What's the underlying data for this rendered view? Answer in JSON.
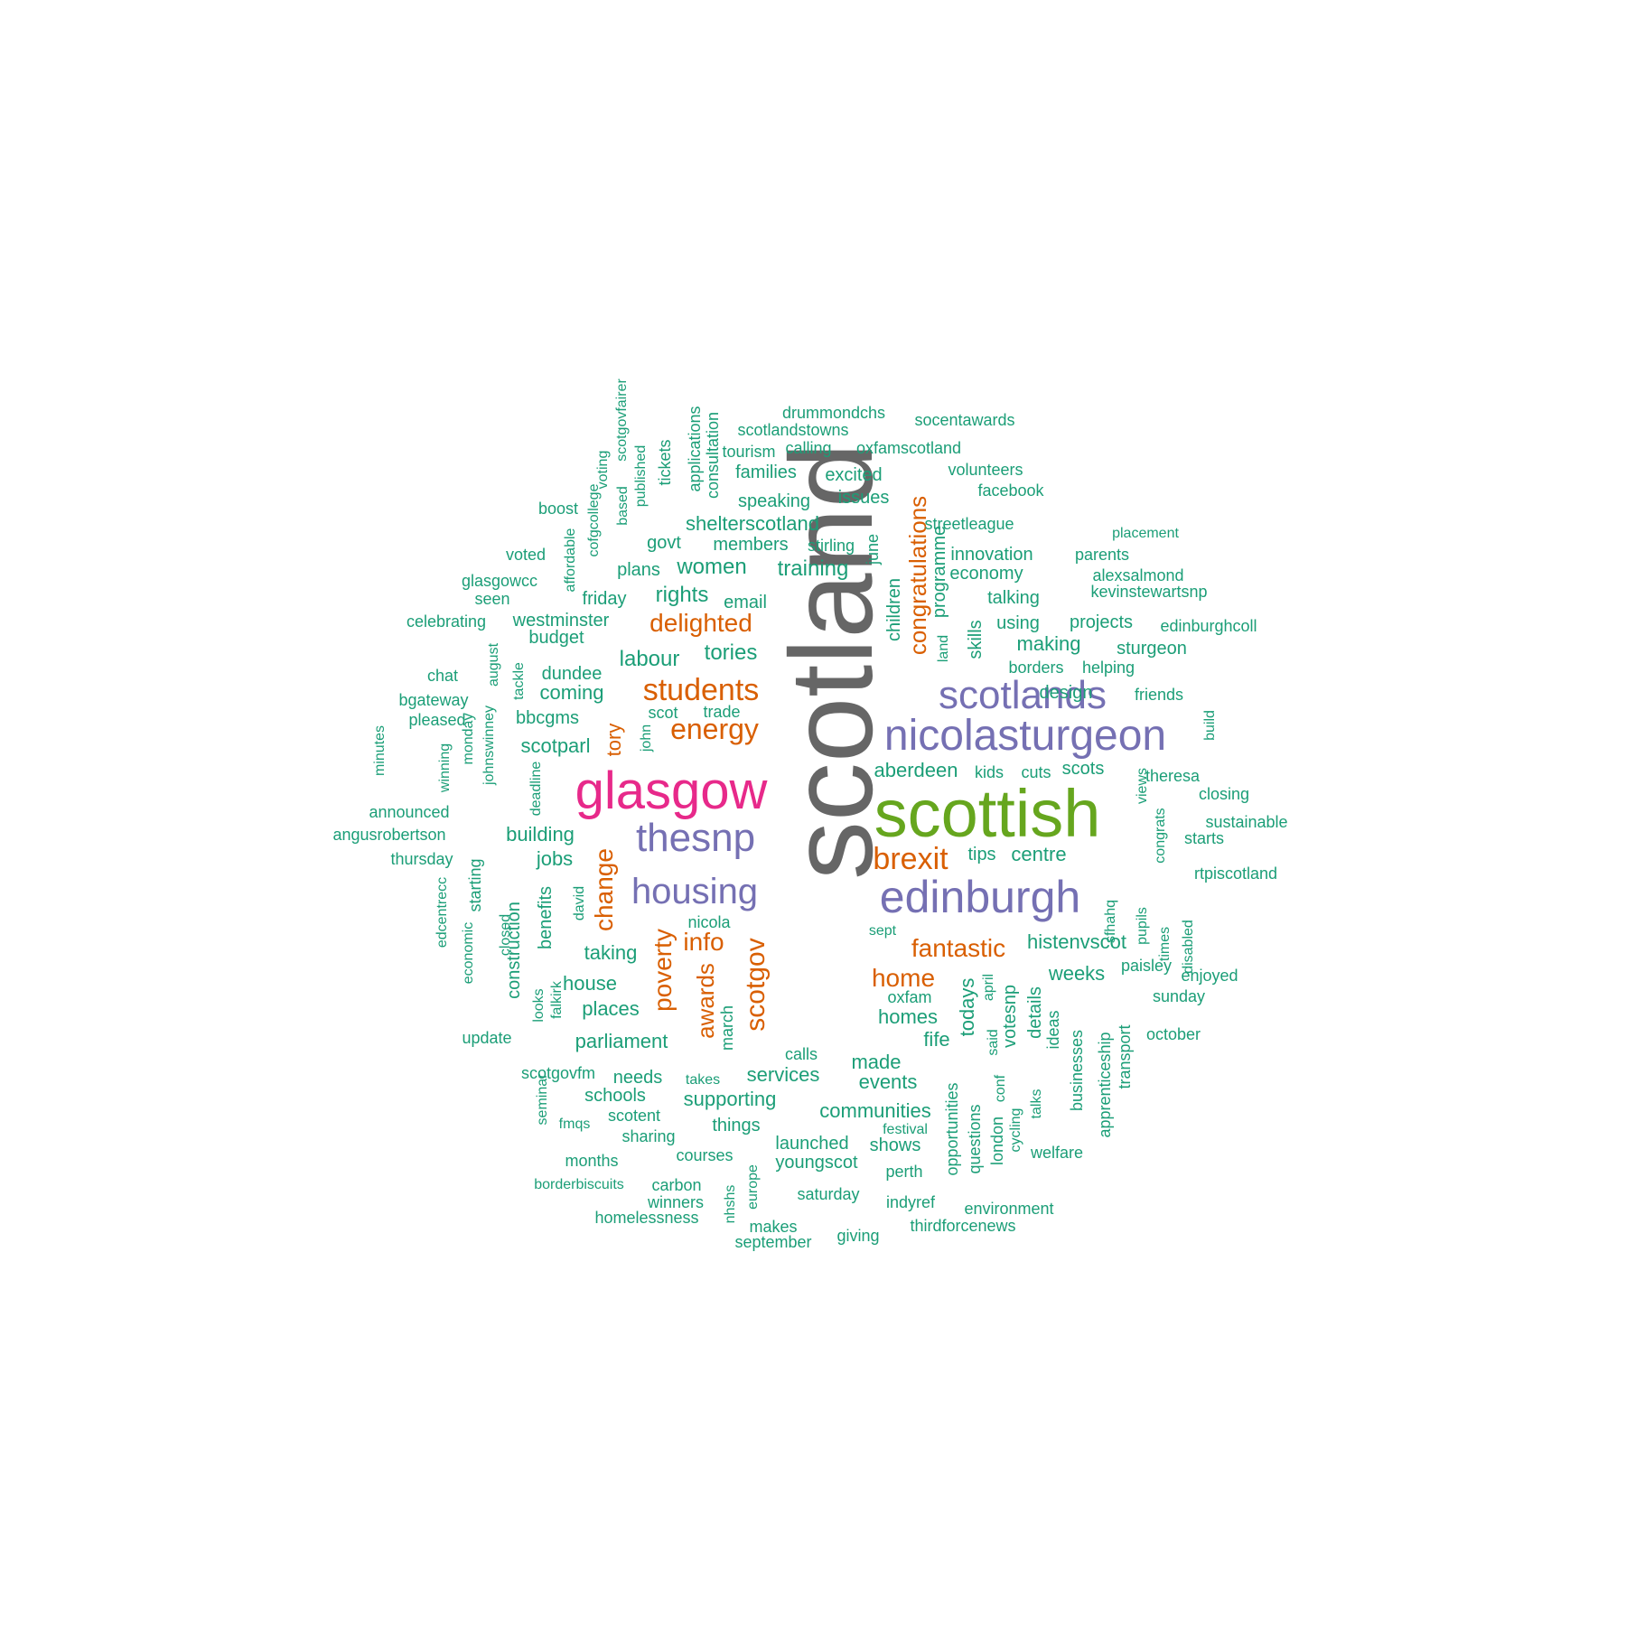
{
  "title": "word cloud",
  "palette": [
    "#1b9e77",
    "#d95f02",
    "#7570b3",
    "#e7298a",
    "#66a61e",
    "#666666"
  ],
  "words": [
    {
      "text": "scotland",
      "color": 5
    },
    {
      "text": "scottish",
      "color": 4
    },
    {
      "text": "glasgow",
      "color": 3
    },
    {
      "text": "nicolasturgeon",
      "color": 2
    },
    {
      "text": "edinburgh",
      "color": 2
    },
    {
      "text": "scotlands",
      "color": 2
    },
    {
      "text": "thesnp",
      "color": 2
    },
    {
      "text": "housing",
      "color": 2
    },
    {
      "text": "students",
      "color": 1
    },
    {
      "text": "energy",
      "color": 1
    },
    {
      "text": "brexit",
      "color": 1
    },
    {
      "text": "delighted",
      "color": 1
    },
    {
      "text": "congratulations",
      "color": 1
    },
    {
      "text": "fantastic",
      "color": 1
    },
    {
      "text": "home",
      "color": 1
    },
    {
      "text": "info",
      "color": 1
    },
    {
      "text": "poverty",
      "color": 1
    },
    {
      "text": "change",
      "color": 1
    },
    {
      "text": "awards",
      "color": 1
    },
    {
      "text": "scotgov",
      "color": 1
    },
    {
      "text": "tory",
      "color": 1
    },
    {
      "text": "drummondchs",
      "color": 0
    },
    {
      "text": "socentawards",
      "color": 0
    },
    {
      "text": "scotlandstowns",
      "color": 0
    },
    {
      "text": "tourism",
      "color": 0
    },
    {
      "text": "calling",
      "color": 0
    },
    {
      "text": "oxfamscotland",
      "color": 0
    },
    {
      "text": "families",
      "color": 0
    },
    {
      "text": "excited",
      "color": 0
    },
    {
      "text": "volunteers",
      "color": 0
    },
    {
      "text": "facebook",
      "color": 0
    },
    {
      "text": "speaking",
      "color": 0
    },
    {
      "text": "issues",
      "color": 0
    },
    {
      "text": "boost",
      "color": 0
    },
    {
      "text": "shelterscotland",
      "color": 0
    },
    {
      "text": "streetleague",
      "color": 0
    },
    {
      "text": "placement",
      "color": 0
    },
    {
      "text": "voted",
      "color": 0
    },
    {
      "text": "govt",
      "color": 0
    },
    {
      "text": "members",
      "color": 0
    },
    {
      "text": "stirling",
      "color": 0
    },
    {
      "text": "innovation",
      "color": 0
    },
    {
      "text": "parents",
      "color": 0
    },
    {
      "text": "glasgowcc",
      "color": 0
    },
    {
      "text": "plans",
      "color": 0
    },
    {
      "text": "women",
      "color": 0
    },
    {
      "text": "training",
      "color": 0
    },
    {
      "text": "economy",
      "color": 0
    },
    {
      "text": "alexsalmond",
      "color": 0
    },
    {
      "text": "seen",
      "color": 0
    },
    {
      "text": "friday",
      "color": 0
    },
    {
      "text": "rights",
      "color": 0
    },
    {
      "text": "email",
      "color": 0
    },
    {
      "text": "talking",
      "color": 0
    },
    {
      "text": "kevinstewartsnp",
      "color": 0
    },
    {
      "text": "celebrating",
      "color": 0
    },
    {
      "text": "westminster",
      "color": 0
    },
    {
      "text": "using",
      "color": 0
    },
    {
      "text": "projects",
      "color": 0
    },
    {
      "text": "edinburghcoll",
      "color": 0
    },
    {
      "text": "budget",
      "color": 0
    },
    {
      "text": "making",
      "color": 0
    },
    {
      "text": "sturgeon",
      "color": 0
    },
    {
      "text": "labour",
      "color": 0
    },
    {
      "text": "tories",
      "color": 0
    },
    {
      "text": "chat",
      "color": 0
    },
    {
      "text": "dundee",
      "color": 0
    },
    {
      "text": "borders",
      "color": 0
    },
    {
      "text": "helping",
      "color": 0
    },
    {
      "text": "bgateway",
      "color": 0
    },
    {
      "text": "coming",
      "color": 0
    },
    {
      "text": "design",
      "color": 0
    },
    {
      "text": "friends",
      "color": 0
    },
    {
      "text": "pleased",
      "color": 0
    },
    {
      "text": "bbcgms",
      "color": 0
    },
    {
      "text": "scot",
      "color": 0
    },
    {
      "text": "trade",
      "color": 0
    },
    {
      "text": "scotparl",
      "color": 0
    },
    {
      "text": "aberdeen",
      "color": 0
    },
    {
      "text": "kids",
      "color": 0
    },
    {
      "text": "cuts",
      "color": 0
    },
    {
      "text": "scots",
      "color": 0
    },
    {
      "text": "theresa",
      "color": 0
    },
    {
      "text": "closing",
      "color": 0
    },
    {
      "text": "announced",
      "color": 0
    },
    {
      "text": "sustainable",
      "color": 0
    },
    {
      "text": "angusrobertson",
      "color": 0
    },
    {
      "text": "building",
      "color": 0
    },
    {
      "text": "starts",
      "color": 0
    },
    {
      "text": "thursday",
      "color": 0
    },
    {
      "text": "jobs",
      "color": 0
    },
    {
      "text": "tips",
      "color": 0
    },
    {
      "text": "centre",
      "color": 0
    },
    {
      "text": "rtpiscotland",
      "color": 0
    },
    {
      "text": "nicola",
      "color": 0
    },
    {
      "text": "sept",
      "color": 0
    },
    {
      "text": "taking",
      "color": 0
    },
    {
      "text": "histenvscot",
      "color": 0
    },
    {
      "text": "paisley",
      "color": 0
    },
    {
      "text": "weeks",
      "color": 0
    },
    {
      "text": "enjoyed",
      "color": 0
    },
    {
      "text": "house",
      "color": 0
    },
    {
      "text": "homes",
      "color": 0
    },
    {
      "text": "oxfam",
      "color": 0
    },
    {
      "text": "sunday",
      "color": 0
    },
    {
      "text": "places",
      "color": 0
    },
    {
      "text": "fife",
      "color": 0
    },
    {
      "text": "update",
      "color": 0
    },
    {
      "text": "parliament",
      "color": 0
    },
    {
      "text": "october",
      "color": 0
    },
    {
      "text": "calls",
      "color": 0
    },
    {
      "text": "made",
      "color": 0
    },
    {
      "text": "scotgovfm",
      "color": 0
    },
    {
      "text": "needs",
      "color": 0
    },
    {
      "text": "takes",
      "color": 0
    },
    {
      "text": "services",
      "color": 0
    },
    {
      "text": "events",
      "color": 0
    },
    {
      "text": "schools",
      "color": 0
    },
    {
      "text": "supporting",
      "color": 0
    },
    {
      "text": "communities",
      "color": 0
    },
    {
      "text": "scotent",
      "color": 0
    },
    {
      "text": "fmqs",
      "color": 0
    },
    {
      "text": "things",
      "color": 0
    },
    {
      "text": "sharing",
      "color": 0
    },
    {
      "text": "festival",
      "color": 0
    },
    {
      "text": "launched",
      "color": 0
    },
    {
      "text": "shows",
      "color": 0
    },
    {
      "text": "welfare",
      "color": 0
    },
    {
      "text": "months",
      "color": 0
    },
    {
      "text": "courses",
      "color": 0
    },
    {
      "text": "youngscot",
      "color": 0
    },
    {
      "text": "perth",
      "color": 0
    },
    {
      "text": "borderbiscuits",
      "color": 0
    },
    {
      "text": "carbon",
      "color": 0
    },
    {
      "text": "saturday",
      "color": 0
    },
    {
      "text": "winners",
      "color": 0
    },
    {
      "text": "indyref",
      "color": 0
    },
    {
      "text": "environment",
      "color": 0
    },
    {
      "text": "homelessness",
      "color": 0
    },
    {
      "text": "makes",
      "color": 0
    },
    {
      "text": "thirdforcenews",
      "color": 0
    },
    {
      "text": "giving",
      "color": 0
    },
    {
      "text": "september",
      "color": 0
    },
    {
      "text": "scotgovfairer",
      "color": 0
    },
    {
      "text": "voting",
      "color": 0
    },
    {
      "text": "published",
      "color": 0
    },
    {
      "text": "tickets",
      "color": 0
    },
    {
      "text": "applications",
      "color": 0
    },
    {
      "text": "consultation",
      "color": 0
    },
    {
      "text": "based",
      "color": 0
    },
    {
      "text": "cofgcollege",
      "color": 0
    },
    {
      "text": "affordable",
      "color": 0
    },
    {
      "text": "june",
      "color": 0
    },
    {
      "text": "programme",
      "color": 0
    },
    {
      "text": "children",
      "color": 0
    },
    {
      "text": "skills",
      "color": 0
    },
    {
      "text": "land",
      "color": 0
    },
    {
      "text": "august",
      "color": 0
    },
    {
      "text": "tackle",
      "color": 0
    },
    {
      "text": "minutes",
      "color": 0
    },
    {
      "text": "winning",
      "color": 0
    },
    {
      "text": "monday",
      "color": 0
    },
    {
      "text": "johnswinney",
      "color": 0
    },
    {
      "text": "john",
      "color": 0
    },
    {
      "text": "build",
      "color": 0
    },
    {
      "text": "deadline",
      "color": 0
    },
    {
      "text": "views",
      "color": 0
    },
    {
      "text": "congrats",
      "color": 0
    },
    {
      "text": "edcentrecc",
      "color": 0
    },
    {
      "text": "starting",
      "color": 0
    },
    {
      "text": "closed",
      "color": 0
    },
    {
      "text": "economic",
      "color": 0
    },
    {
      "text": "construction",
      "color": 0
    },
    {
      "text": "benefits",
      "color": 0
    },
    {
      "text": "david",
      "color": 0
    },
    {
      "text": "falkirk",
      "color": 0
    },
    {
      "text": "looks",
      "color": 0
    },
    {
      "text": "sfhahq",
      "color": 0
    },
    {
      "text": "pupils",
      "color": 0
    },
    {
      "text": "times",
      "color": 0
    },
    {
      "text": "disabled",
      "color": 0
    },
    {
      "text": "todays",
      "color": 0
    },
    {
      "text": "april",
      "color": 0
    },
    {
      "text": "votesnp",
      "color": 0
    },
    {
      "text": "said",
      "color": 0
    },
    {
      "text": "details",
      "color": 0
    },
    {
      "text": "ideas",
      "color": 0
    },
    {
      "text": "businesses",
      "color": 0
    },
    {
      "text": "apprenticeship",
      "color": 0
    },
    {
      "text": "transport",
      "color": 0
    },
    {
      "text": "march",
      "color": 0
    },
    {
      "text": "seminar",
      "color": 0
    },
    {
      "text": "opportunities",
      "color": 0
    },
    {
      "text": "questions",
      "color": 0
    },
    {
      "text": "london",
      "color": 0
    },
    {
      "text": "conf",
      "color": 0
    },
    {
      "text": "cycling",
      "color": 0
    },
    {
      "text": "talks",
      "color": 0
    },
    {
      "text": "europe",
      "color": 0
    },
    {
      "text": "nhshs",
      "color": 0
    }
  ]
}
